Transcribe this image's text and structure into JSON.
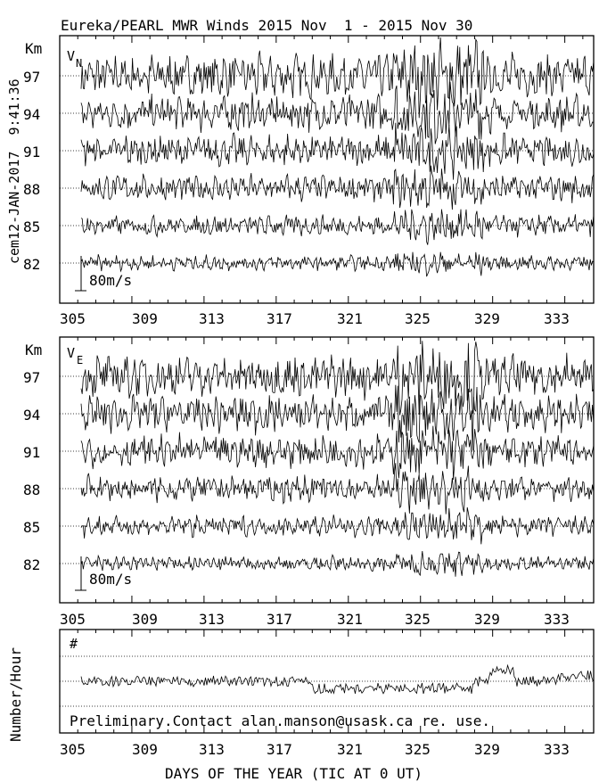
{
  "title": "Eureka/PEARL MWR Winds 2015 Nov  1 - 2015 Nov 30",
  "side_stamp": "cem12-JAN-2017  9:41:36",
  "x_axis_label": "DAYS OF THE YEAR (TIC AT 0 UT)",
  "day_ticks": [
    "305",
    "309",
    "313",
    "317",
    "321",
    "325",
    "329",
    "333"
  ],
  "panels": [
    {
      "id": "v-north",
      "component_label": "V",
      "component_sub": "N",
      "unit_label": "Km",
      "altitude_labels": [
        "97",
        "94",
        "91",
        "88",
        "85",
        "82"
      ],
      "scale_label": "80m/s"
    },
    {
      "id": "v-east",
      "component_label": "V",
      "component_sub": "E",
      "unit_label": "Km",
      "altitude_labels": [
        "97",
        "94",
        "91",
        "88",
        "85",
        "82"
      ],
      "scale_label": "80m/s"
    }
  ],
  "count_panel": {
    "ylabel": "Number/Hour",
    "marker": "#",
    "note": "Preliminary.Contact alan.manson@usask.ca re. use."
  },
  "chart_data": {
    "type": "line",
    "title": "Eureka/PEARL MWR Winds 2015 Nov  1 - 2015 Nov 30",
    "xlabel": "DAYS OF THE YEAR (TIC AT 0 UT)",
    "xlim": [
      305,
      334.6
    ],
    "x_ticks": [
      305,
      309,
      313,
      317,
      321,
      325,
      329,
      333
    ],
    "altitudes_km": [
      97,
      94,
      91,
      88,
      85,
      82
    ],
    "wind_scale_ms": 80,
    "grid": "dotted baselines per altitude",
    "series_style": "dense hourly wind traces (approx. ±20 to ±60 m/s), amplitude grows with altitude; strongest burst near day 324-328",
    "count_series": "hourly meteor count per hour, roughly flat with gradual rise after day 329"
  }
}
